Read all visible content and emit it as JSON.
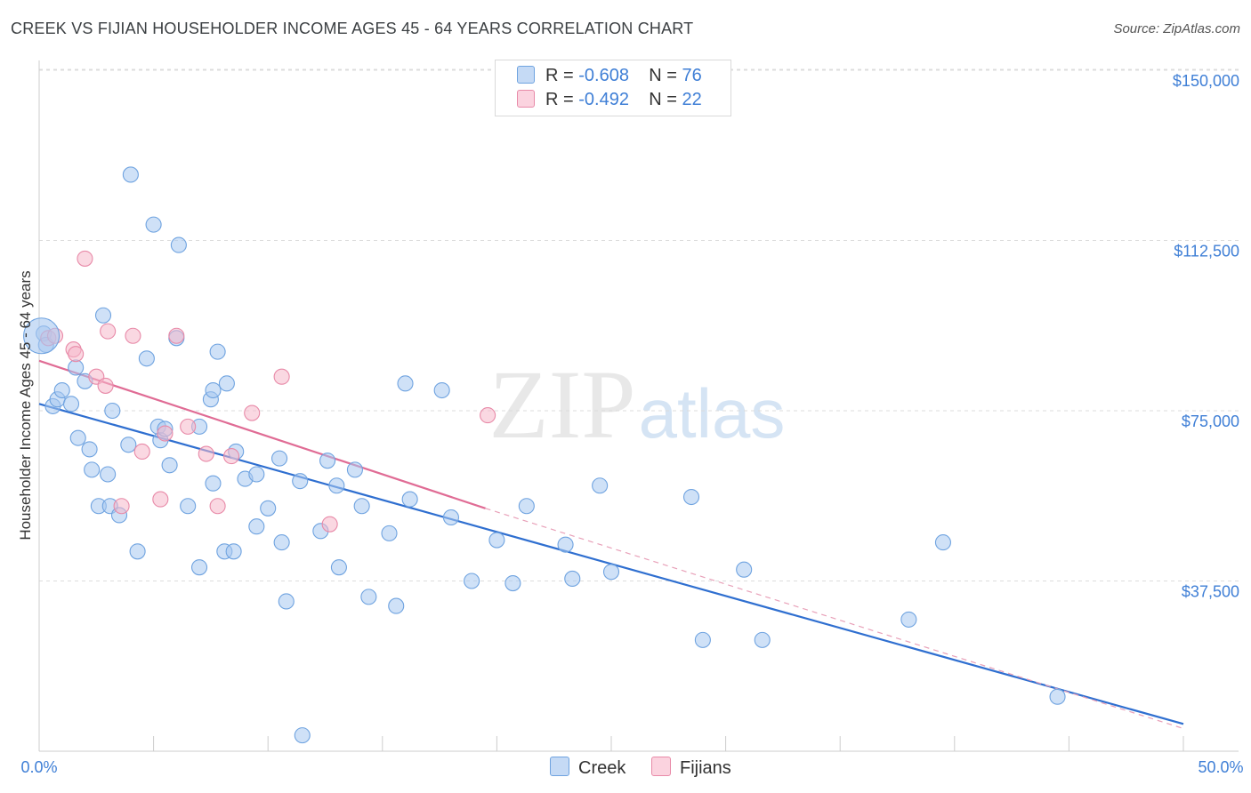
{
  "title": "CREEK VS FIJIAN HOUSEHOLDER INCOME AGES 45 - 64 YEARS CORRELATION CHART",
  "source": "Source: ZipAtlas.com",
  "watermark": {
    "zip": "ZIP",
    "atlas": "atlas"
  },
  "legend": {
    "rows": [
      {
        "r_label": "R = ",
        "r_value": "-0.608",
        "n_label": "N = ",
        "n_value": "76",
        "color": "#a8c8f0"
      },
      {
        "r_label": "R = ",
        "r_value": "-0.492",
        "n_label": "N = ",
        "n_value": "22",
        "color": "#f5b8ca"
      }
    ]
  },
  "bottom_legend": {
    "creek": "Creek",
    "fijians": "Fijians"
  },
  "chart_data": {
    "type": "scatter",
    "title": "CREEK VS FIJIAN HOUSEHOLDER INCOME AGES 45 - 64 YEARS CORRELATION CHART",
    "xlabel": "",
    "ylabel": "Householder Income Ages 45 - 64 years",
    "xlim": [
      0,
      50
    ],
    "ylim": [
      0,
      157500
    ],
    "x_tick_labels": [
      "0.0%",
      "50.0%"
    ],
    "y_ticks": [
      37500,
      75000,
      112500,
      150000
    ],
    "y_tick_labels": [
      "$37,500",
      "$75,000",
      "$112,500",
      "$150,000"
    ],
    "grid": true,
    "series": [
      {
        "name": "Creek",
        "color": "#6fa3e0",
        "fill": "#a8c8f0",
        "trend": {
          "x0": 0,
          "y0": 76500,
          "x1": 50,
          "y1": 6000,
          "color": "#2f6fd0"
        },
        "points": [
          [
            0.2,
            92000
          ],
          [
            0.3,
            89500
          ],
          [
            0.6,
            76000
          ],
          [
            0.8,
            77500
          ],
          [
            1.0,
            79500
          ],
          [
            1.4,
            76500
          ],
          [
            1.6,
            84500
          ],
          [
            1.7,
            69000
          ],
          [
            2.0,
            81500
          ],
          [
            2.2,
            66500
          ],
          [
            2.3,
            62000
          ],
          [
            2.8,
            96000
          ],
          [
            3.0,
            61000
          ],
          [
            2.6,
            54000
          ],
          [
            3.1,
            54000
          ],
          [
            3.2,
            75000
          ],
          [
            3.5,
            52000
          ],
          [
            3.9,
            67500
          ],
          [
            4.3,
            44000
          ],
          [
            4.7,
            86500
          ],
          [
            5.0,
            116000
          ],
          [
            5.2,
            71500
          ],
          [
            5.3,
            68500
          ],
          [
            5.7,
            63000
          ],
          [
            6.0,
            91000
          ],
          [
            6.1,
            111500
          ],
          [
            6.5,
            54000
          ],
          [
            7.0,
            71500
          ],
          [
            7.0,
            40500
          ],
          [
            7.5,
            77500
          ],
          [
            7.6,
            79500
          ],
          [
            7.6,
            59000
          ],
          [
            7.8,
            88000
          ],
          [
            8.1,
            44000
          ],
          [
            8.2,
            81000
          ],
          [
            8.5,
            44000
          ],
          [
            8.6,
            66000
          ],
          [
            9.0,
            60000
          ],
          [
            9.5,
            61000
          ],
          [
            9.5,
            49500
          ],
          [
            10.0,
            53500
          ],
          [
            10.5,
            64500
          ],
          [
            10.6,
            46000
          ],
          [
            10.8,
            33000
          ],
          [
            11.4,
            59500
          ],
          [
            11.5,
            3500
          ],
          [
            12.3,
            48500
          ],
          [
            12.6,
            64000
          ],
          [
            13.0,
            58500
          ],
          [
            13.1,
            40500
          ],
          [
            13.8,
            62000
          ],
          [
            14.1,
            54000
          ],
          [
            14.4,
            34000
          ],
          [
            15.3,
            48000
          ],
          [
            15.6,
            32000
          ],
          [
            16.0,
            81000
          ],
          [
            16.2,
            55500
          ],
          [
            17.6,
            79500
          ],
          [
            18.0,
            51500
          ],
          [
            18.9,
            37500
          ],
          [
            20.0,
            46500
          ],
          [
            20.7,
            37000
          ],
          [
            21.3,
            54000
          ],
          [
            23.0,
            45500
          ],
          [
            23.3,
            38000
          ],
          [
            24.5,
            58500
          ],
          [
            25.0,
            39500
          ],
          [
            28.5,
            56000
          ],
          [
            29.0,
            24500
          ],
          [
            30.8,
            40000
          ],
          [
            31.6,
            24500
          ],
          [
            38.0,
            29000
          ],
          [
            39.5,
            46000
          ],
          [
            44.5,
            12000
          ],
          [
            4.0,
            127000
          ],
          [
            5.5,
            71000
          ]
        ]
      },
      {
        "name": "Fijians",
        "color": "#e88aa8",
        "fill": "#f5b8ca",
        "trend": {
          "x0": 0,
          "y0": 86000,
          "x1": 19.5,
          "y1": 53500,
          "color": "#e06c95"
        },
        "trend_ext": {
          "x0": 19.5,
          "y0": 53500,
          "x1": 50,
          "y1": 5000,
          "color": "#e8a0b8"
        },
        "points": [
          [
            0.4,
            91000
          ],
          [
            0.7,
            91500
          ],
          [
            1.5,
            88500
          ],
          [
            1.6,
            87500
          ],
          [
            2.0,
            108500
          ],
          [
            2.5,
            82500
          ],
          [
            2.9,
            80500
          ],
          [
            3.0,
            92500
          ],
          [
            3.6,
            54000
          ],
          [
            4.1,
            91500
          ],
          [
            4.5,
            66000
          ],
          [
            5.3,
            55500
          ],
          [
            5.5,
            70000
          ],
          [
            6.0,
            91500
          ],
          [
            6.5,
            71500
          ],
          [
            7.3,
            65500
          ],
          [
            7.8,
            54000
          ],
          [
            8.4,
            65000
          ],
          [
            9.3,
            74500
          ],
          [
            10.6,
            82500
          ],
          [
            12.7,
            50000
          ],
          [
            19.6,
            74000
          ]
        ]
      }
    ]
  }
}
